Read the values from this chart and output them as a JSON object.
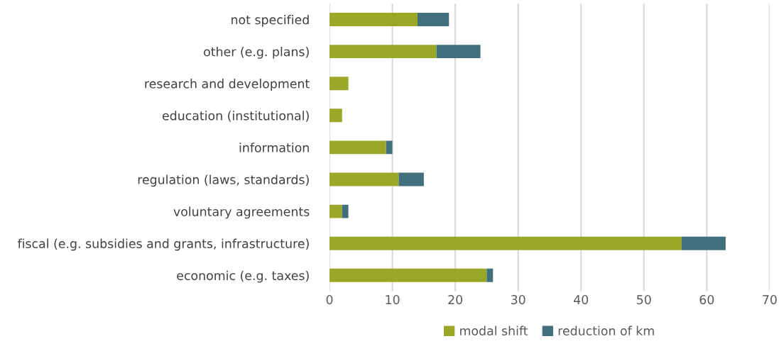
{
  "chart_data": {
    "type": "bar",
    "orientation": "horizontal",
    "stacked": true,
    "categories": [
      "not specified",
      "other (e.g. plans)",
      "research and development",
      "education (institutional)",
      "information",
      "regulation (laws, standards)",
      "voluntary agreements",
      "fiscal (e.g. subsidies and grants, infrastructure)",
      "economic (e.g. taxes)"
    ],
    "series": [
      {
        "name": "modal shift",
        "color": "#9aa828",
        "values": [
          14,
          17,
          3,
          2,
          9,
          11,
          2,
          56,
          25
        ]
      },
      {
        "name": "reduction of km",
        "color": "#41707c",
        "values": [
          5,
          7,
          0,
          0,
          1,
          4,
          1,
          7,
          1
        ]
      }
    ],
    "xlim": [
      0,
      70
    ],
    "xticks": [
      0,
      10,
      20,
      30,
      40,
      50,
      60,
      70
    ],
    "grid": "x",
    "legend": "bottom"
  }
}
